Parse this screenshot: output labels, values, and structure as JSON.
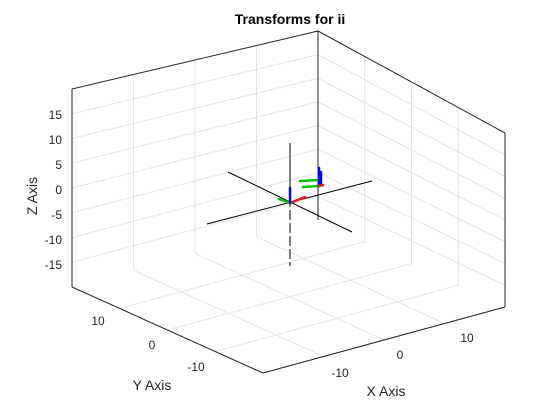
{
  "chart_data": {
    "type": "3d-axes",
    "title": "Transforms for ii",
    "xlabel": "X Axis",
    "ylabel": "Y Axis",
    "zlabel": "Z Axis",
    "xlim": [
      -20,
      20
    ],
    "ylim": [
      -20,
      20
    ],
    "zlim": [
      -20,
      20
    ],
    "xticks": [
      "-10",
      "0",
      "10"
    ],
    "yticks": [
      "10",
      "0",
      "-10"
    ],
    "zticks": [
      "15",
      "10",
      "5",
      "0",
      "-5",
      "-10",
      "-15"
    ],
    "grid": true,
    "view": "3d",
    "colors": {
      "x_triad": "#e41a1c",
      "y_triad": "#00c000",
      "z_triad": "#0000ff",
      "world_axes": "#000000",
      "grid": "#e5e5e5",
      "box": "#262626"
    }
  }
}
